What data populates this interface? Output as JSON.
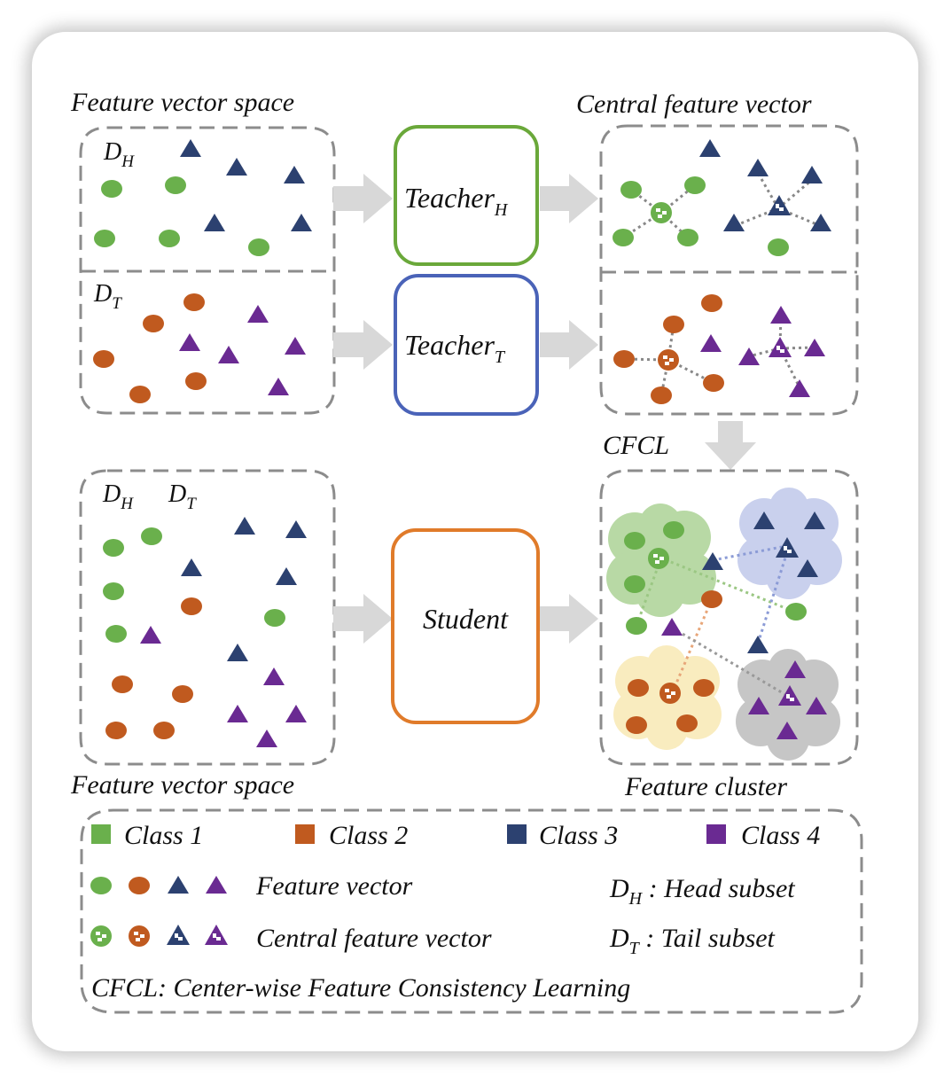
{
  "labels": {
    "top_left": "Feature vector space",
    "top_right": "Central feature vector",
    "bottom_left": "Feature vector space",
    "bottom_right": "Feature cluster",
    "cfcl": "CFCL",
    "dh": "D",
    "dh_sub": "H",
    "dt": "D",
    "dt_sub": "T",
    "dh2": "D",
    "dh2_sub": "H",
    "dt2": "D",
    "dt2_sub": "T"
  },
  "models": {
    "teacher_h": "Teacher",
    "teacher_h_sub": "H",
    "teacher_t": "Teacher",
    "teacher_t_sub": "T",
    "student": "Student"
  },
  "legend": {
    "class1": "Class 1",
    "class2": "Class 2",
    "class3": "Class 3",
    "class4": "Class 4",
    "feature_vector": "Feature vector",
    "central_feature_vector": "Central feature vector",
    "head_main": "D",
    "head_sub": "H",
    "head_desc": " : Head subset",
    "tail_main": "D",
    "tail_sub": "T",
    "tail_desc": " : Tail subset",
    "cfcl_def": "CFCL: Center-wise Feature Consistency Learning"
  },
  "colors": {
    "class1": "#6ab04c",
    "class2": "#c05a1f",
    "class3": "#2c4170",
    "class4": "#6a2a92",
    "teacher_h_border": "#6aa83a",
    "teacher_t_border": "#4a63b8",
    "student_border": "#e07b2a"
  }
}
